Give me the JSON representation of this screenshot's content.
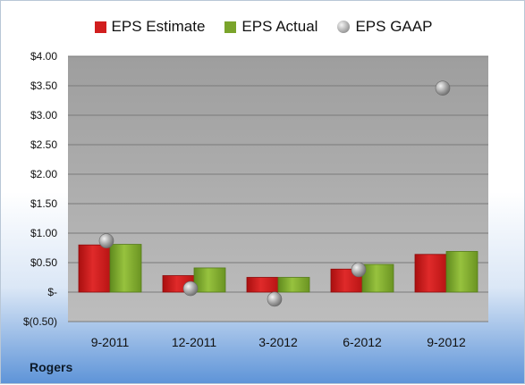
{
  "company": "Rogers",
  "colors": {
    "estimate": "#d11e1e",
    "actual": "#7aa42b",
    "gaap": "#aaaaaa"
  },
  "chart_data": {
    "type": "bar",
    "categories": [
      "9-2011",
      "12-2011",
      "3-2012",
      "6-2012",
      "9-2012"
    ],
    "series": [
      {
        "name": "EPS Estimate",
        "values": [
          0.8,
          0.28,
          0.25,
          0.39,
          0.64
        ]
      },
      {
        "name": "EPS Actual",
        "values": [
          0.81,
          0.41,
          0.25,
          0.47,
          0.69
        ]
      },
      {
        "name": "EPS GAAP",
        "type": "scatter",
        "values": [
          0.87,
          0.06,
          -0.12,
          0.38,
          3.46
        ]
      }
    ],
    "ylim": [
      -0.5,
      4.0
    ],
    "yticks": [
      "$4.00",
      "$3.50",
      "$3.00",
      "$2.50",
      "$2.00",
      "$1.50",
      "$1.00",
      "$0.50",
      "$-",
      "$(0.50)"
    ],
    "ytick_values": [
      4.0,
      3.5,
      3.0,
      2.5,
      2.0,
      1.5,
      1.0,
      0.5,
      0.0,
      -0.5
    ],
    "grid": true,
    "legend_position": "top"
  }
}
